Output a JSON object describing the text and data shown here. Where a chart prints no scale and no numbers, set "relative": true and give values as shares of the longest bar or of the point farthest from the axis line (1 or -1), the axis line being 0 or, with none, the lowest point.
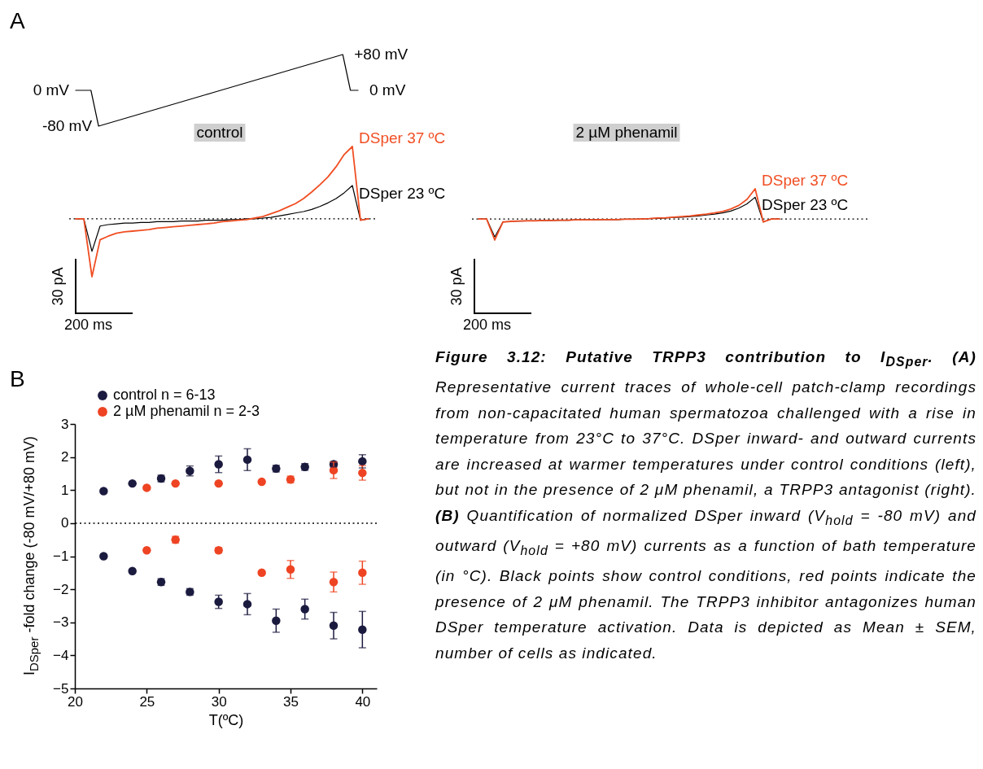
{
  "chart_data": [
    {
      "type": "line",
      "annotations": [
        "A"
      ],
      "tick_labels": false,
      "categories": [
        null,
        null,
        null,
        null,
        null,
        null,
        null,
        null,
        null,
        null,
        null,
        null,
        null,
        null,
        null,
        null,
        null,
        null,
        null,
        null,
        null,
        null,
        null,
        null,
        null,
        null,
        null,
        null,
        null,
        null,
        null,
        null,
        null,
        null,
        null,
        null,
        null,
        null
      ],
      "series": [
        {
          "color": "#000000",
          "values": [
            0,
            0,
            0,
            -80,
            -75,
            -70,
            -65,
            -60,
            -55,
            -50,
            -45,
            -40,
            -35,
            -30,
            -25,
            -20,
            -15,
            -10,
            -5,
            0,
            5,
            10,
            15,
            20,
            25,
            30,
            35,
            40,
            45,
            50,
            55,
            60,
            65,
            70,
            75,
            80,
            0,
            0
          ],
          "value_labels": [
            "0 mV",
            null,
            null,
            "-80 mV",
            null,
            null,
            null,
            null,
            null,
            null,
            null,
            null,
            null,
            null,
            null,
            null,
            null,
            null,
            null,
            null,
            null,
            null,
            null,
            null,
            null,
            null,
            null,
            null,
            null,
            null,
            null,
            null,
            null,
            null,
            null,
            "+80 mV",
            null,
            "0 mV"
          ]
        }
      ]
    },
    {
      "type": "line",
      "title": "control",
      "annotations": [
        "30 pA",
        "200 ms"
      ],
      "relative": true,
      "tick_labels": false,
      "categories": [
        null,
        null,
        null,
        null,
        null,
        null,
        null,
        null,
        null,
        null,
        null,
        null,
        null,
        null,
        null,
        null,
        null,
        null,
        null,
        null,
        null,
        null,
        null,
        null,
        null,
        null,
        null,
        null,
        null,
        null,
        null,
        null,
        null,
        null,
        null,
        null,
        null
      ],
      "series": [
        {
          "name": "DSper 37 ºC",
          "color": "#f04e23",
          "values": [
            0,
            0,
            -0.8,
            -0.29,
            -0.24,
            -0.2,
            -0.18,
            -0.17,
            -0.16,
            -0.15,
            -0.13,
            -0.12,
            -0.11,
            -0.1,
            -0.09,
            -0.08,
            -0.07,
            -0.06,
            -0.04,
            -0.03,
            -0.02,
            -0.01,
            0.01,
            0.03,
            0.07,
            0.11,
            0.16,
            0.21,
            0.28,
            0.37,
            0.47,
            0.58,
            0.72,
            0.89,
            1,
            -0.02,
            0
          ]
        },
        {
          "name": "DSper 23 ºC",
          "color": "#000000",
          "values": [
            0,
            0,
            -0.45,
            -0.1,
            -0.08,
            -0.07,
            -0.06,
            -0.06,
            -0.05,
            -0.05,
            -0.04,
            -0.04,
            -0.04,
            -0.03,
            -0.03,
            -0.03,
            -0.02,
            -0.02,
            -0.02,
            -0.01,
            -0.01,
            0,
            0,
            0.01,
            0.02,
            0.04,
            0.06,
            0.08,
            0.1,
            0.13,
            0.17,
            0.22,
            0.28,
            0.36,
            0.46,
            -0.02,
            0
          ]
        }
      ],
      "ref_lines": [
        {
          "axis": "y",
          "value": 0,
          "line_style": "dotted",
          "color": "#000000"
        }
      ]
    },
    {
      "type": "line",
      "title": "2 µM phenamil",
      "annotations": [
        "30 pA",
        "200 ms"
      ],
      "relative": true,
      "tick_labels": false,
      "categories": [
        null,
        null,
        null,
        null,
        null,
        null,
        null,
        null,
        null,
        null,
        null,
        null,
        null,
        null,
        null,
        null,
        null,
        null,
        null,
        null,
        null,
        null,
        null,
        null,
        null,
        null,
        null,
        null,
        null,
        null,
        null,
        null,
        null,
        null,
        null,
        null,
        null,
        null
      ],
      "series": [
        {
          "name": "DSper 37 ºC",
          "color": "#f04e23",
          "values": [
            0,
            0,
            -0.7,
            -0.1,
            -0.08,
            -0.07,
            -0.06,
            -0.06,
            -0.05,
            -0.05,
            -0.04,
            -0.04,
            -0.03,
            -0.03,
            -0.03,
            -0.02,
            -0.02,
            -0.02,
            -0.01,
            -0.01,
            0,
            0.01,
            0.03,
            0.04,
            0.06,
            0.08,
            0.1,
            0.13,
            0.16,
            0.2,
            0.25,
            0.33,
            0.45,
            0.65,
            1,
            -0.1,
            0,
            0
          ]
        },
        {
          "name": "DSper 23 ºC",
          "color": "#000000",
          "values": [
            0,
            0,
            -0.6,
            -0.1,
            -0.08,
            -0.07,
            -0.06,
            -0.06,
            -0.05,
            -0.05,
            -0.04,
            -0.04,
            -0.03,
            -0.03,
            -0.03,
            -0.02,
            -0.02,
            -0.02,
            -0.01,
            -0.01,
            0,
            0.01,
            0.02,
            0.03,
            0.05,
            0.06,
            0.08,
            0.1,
            0.13,
            0.16,
            0.2,
            0.26,
            0.36,
            0.5,
            0.72,
            -0.1,
            0,
            0
          ]
        }
      ],
      "ref_lines": [
        {
          "axis": "y",
          "value": 0,
          "line_style": "dotted",
          "color": "#000000"
        }
      ]
    },
    {
      "type": "scatter",
      "annotations": [
        "B"
      ],
      "xlabel": "T(ºC)",
      "ylabel": "I$_{DSper}$ -fold change (-80 mV/+80 mV)",
      "xlim": [
        20,
        41
      ],
      "xticks": [
        20,
        25,
        30,
        35,
        40
      ],
      "ylim": [
        -5,
        3
      ],
      "yticks": [
        -5,
        -4,
        -3,
        -2,
        -1,
        0,
        1,
        2,
        3
      ],
      "legend": "top left",
      "marker": "circle",
      "ref_lines": [
        {
          "axis": "y",
          "value": 0,
          "line_style": "dotted",
          "color": "#000000"
        }
      ],
      "series": [
        {
          "name": "control n = 6-13",
          "color": "#1b1a3f",
          "x": [
            22,
            24,
            26,
            28,
            30,
            32,
            34,
            36,
            38,
            40,
            22,
            24,
            26,
            28,
            30,
            32,
            34,
            36,
            38,
            40
          ],
          "values": [
            0.97,
            1.2,
            1.35,
            1.58,
            1.78,
            1.92,
            1.65,
            1.7,
            1.78,
            1.87,
            -1,
            -1.45,
            -1.78,
            -2.08,
            -2.38,
            -2.45,
            -2.95,
            -2.6,
            -3.1,
            -3.22
          ],
          "errors": [
            null,
            null,
            0.1,
            0.15,
            0.25,
            0.33,
            0.1,
            0.1,
            0.08,
            0.2,
            null,
            null,
            0.1,
            0.1,
            0.2,
            0.32,
            0.35,
            0.3,
            0.4,
            0.55
          ]
        },
        {
          "name": "2 µM phenamil n = 2-3",
          "color": "#ee4423",
          "x": [
            25,
            27,
            30,
            33,
            35,
            38,
            40,
            25,
            27,
            30,
            33,
            35,
            38,
            40
          ],
          "values": [
            1.07,
            1.2,
            1.2,
            1.25,
            1.32,
            1.6,
            1.52,
            -0.82,
            -0.5,
            -0.82,
            -1.5,
            -1.4,
            -1.78,
            -1.5
          ],
          "errors": [
            null,
            null,
            null,
            null,
            0.1,
            0.25,
            0.22,
            null,
            0.1,
            0.08,
            null,
            0.27,
            0.3,
            0.35
          ]
        }
      ]
    },
    {
      "type": "other",
      "annotations": [
        "Figure 3.12: Putative TRPP3 contribution to I$_{DSper}$.",
        "(A)",
        "Representative current traces of whole-cell patch-clamp recordings from non-capacitated human spermatozoa challenged with a rise in temperature from 23°C to 37°C. DSper inward- and outward currents are increased at warmer temperatures under control conditions (left), but not in the presence of 2 μM phenamil, a TRPP3 antagonist (right).",
        "(B)",
        "Quantification of normalized DSper inward (V$_{hold}$ = -80 mV) and outward (V$_{hold}$ = +80 mV) currents as a function of bath temperature (in °C). Black points show control conditions, red points indicate the presence of 2 μM phenamil. The TRPP3 inhibitor antagonizes human DSper temperature activation. Data is depicted as Mean ± SEM, number of cells as indicated."
      ]
    }
  ]
}
